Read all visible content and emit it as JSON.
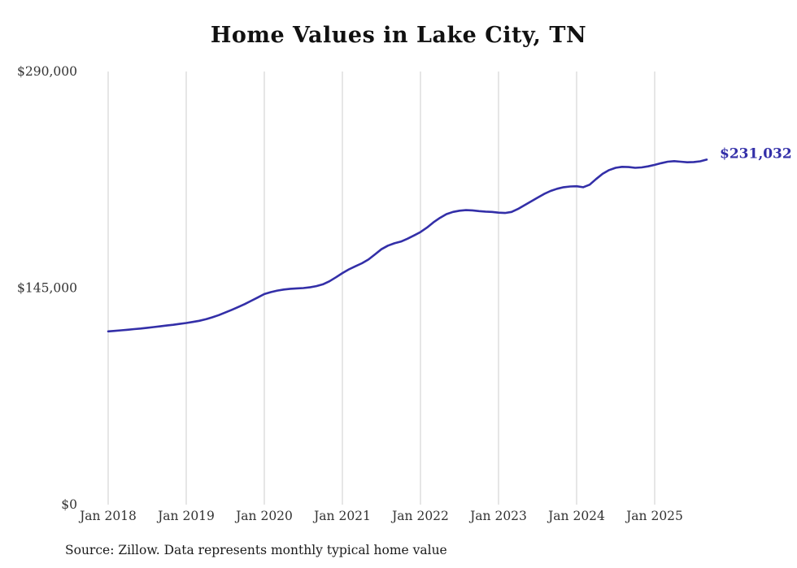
{
  "title": "Home Values in Lake City, TN",
  "end_label": "$231,032",
  "source_note": "Source: Zillow. Data represents monthly typical home value",
  "colors": {
    "line": "#332fa8",
    "end_label": "#332fa8",
    "grid": "#cccccc",
    "axis_text": "#333333",
    "title_text": "#111111"
  },
  "chart_data": {
    "type": "line",
    "title": "Home Values in Lake City, TN",
    "xlabel": "",
    "ylabel": "",
    "ylim": [
      0,
      290000
    ],
    "grid": "vertical-only",
    "legend_position": "none",
    "yticks": [
      {
        "value": 0,
        "label": "$0"
      },
      {
        "value": 145000,
        "label": "$145,000"
      },
      {
        "value": 290000,
        "label": "$290,000"
      }
    ],
    "xticks": [
      "Jan 2018",
      "Jan 2019",
      "Jan 2020",
      "Jan 2021",
      "Jan 2022",
      "Jan 2023",
      "Jan 2024",
      "Jan 2025"
    ],
    "final_value": 231032,
    "x": [
      "2018-01",
      "2018-02",
      "2018-03",
      "2018-04",
      "2018-05",
      "2018-06",
      "2018-07",
      "2018-08",
      "2018-09",
      "2018-10",
      "2018-11",
      "2018-12",
      "2019-01",
      "2019-02",
      "2019-03",
      "2019-04",
      "2019-05",
      "2019-06",
      "2019-07",
      "2019-08",
      "2019-09",
      "2019-10",
      "2019-11",
      "2019-12",
      "2020-01",
      "2020-02",
      "2020-03",
      "2020-04",
      "2020-05",
      "2020-06",
      "2020-07",
      "2020-08",
      "2020-09",
      "2020-10",
      "2020-11",
      "2020-12",
      "2021-01",
      "2021-02",
      "2021-03",
      "2021-04",
      "2021-05",
      "2021-06",
      "2021-07",
      "2021-08",
      "2021-09",
      "2021-10",
      "2021-11",
      "2021-12",
      "2022-01",
      "2022-02",
      "2022-03",
      "2022-04",
      "2022-05",
      "2022-06",
      "2022-07",
      "2022-08",
      "2022-09",
      "2022-10",
      "2022-11",
      "2022-12",
      "2023-01",
      "2023-02",
      "2023-03",
      "2023-04",
      "2023-05",
      "2023-06",
      "2023-07",
      "2023-08",
      "2023-09",
      "2023-10",
      "2023-11",
      "2023-12",
      "2024-01",
      "2024-02",
      "2024-03",
      "2024-04",
      "2024-05",
      "2024-06",
      "2024-07",
      "2024-08",
      "2024-09",
      "2024-10",
      "2024-11",
      "2024-12",
      "2025-01",
      "2025-02",
      "2025-03",
      "2025-04",
      "2025-05",
      "2025-06",
      "2025-07",
      "2025-08",
      "2025-09"
    ],
    "values": [
      116000,
      116300,
      116700,
      117100,
      117500,
      117900,
      118400,
      118900,
      119400,
      119900,
      120400,
      121000,
      121600,
      122300,
      123100,
      124100,
      125400,
      126900,
      128600,
      130400,
      132300,
      134300,
      136500,
      138700,
      141000,
      142300,
      143300,
      144000,
      144500,
      144800,
      145000,
      145500,
      146300,
      147500,
      149500,
      152200,
      155000,
      157500,
      159600,
      161600,
      164100,
      167500,
      171000,
      173400,
      175000,
      176100,
      178000,
      180200,
      182500,
      185500,
      189000,
      192000,
      194500,
      196000,
      196800,
      197200,
      197000,
      196500,
      196200,
      196000,
      195500,
      195300,
      196000,
      198000,
      200500,
      203000,
      205500,
      208000,
      210000,
      211500,
      212500,
      213000,
      213200,
      212500,
      214200,
      218000,
      221500,
      224000,
      225500,
      226200,
      226000,
      225500,
      225800,
      226500,
      227500,
      228600,
      229600,
      230000,
      229600,
      229200,
      229400,
      229900,
      231032
    ]
  }
}
